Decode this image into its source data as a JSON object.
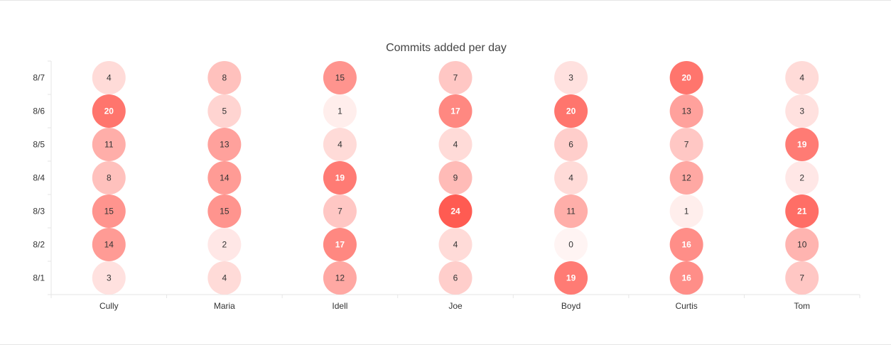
{
  "chart_data": {
    "type": "heatmap",
    "title": "Commits added per day",
    "xlabel": "",
    "ylabel": "",
    "categories": [
      "Cully",
      "Maria",
      "Idell",
      "Joe",
      "Boyd",
      "Curtis",
      "Tom"
    ],
    "rows": [
      "8/7",
      "8/6",
      "8/5",
      "8/4",
      "8/3",
      "8/2",
      "8/1"
    ],
    "values": [
      [
        4,
        8,
        15,
        7,
        3,
        20,
        4
      ],
      [
        20,
        5,
        1,
        17,
        20,
        13,
        3
      ],
      [
        11,
        13,
        4,
        4,
        6,
        7,
        19
      ],
      [
        8,
        14,
        19,
        9,
        4,
        12,
        2
      ],
      [
        15,
        15,
        7,
        24,
        11,
        1,
        21
      ],
      [
        14,
        2,
        17,
        4,
        0,
        16,
        10
      ],
      [
        3,
        4,
        12,
        6,
        19,
        16,
        7
      ]
    ],
    "value_range": [
      0,
      24
    ],
    "colors": {
      "low": "#fff4f3",
      "high": "#ff5b52",
      "axis": "#e6e6e6",
      "text": "#333333"
    },
    "grid": false,
    "legend": "none"
  }
}
